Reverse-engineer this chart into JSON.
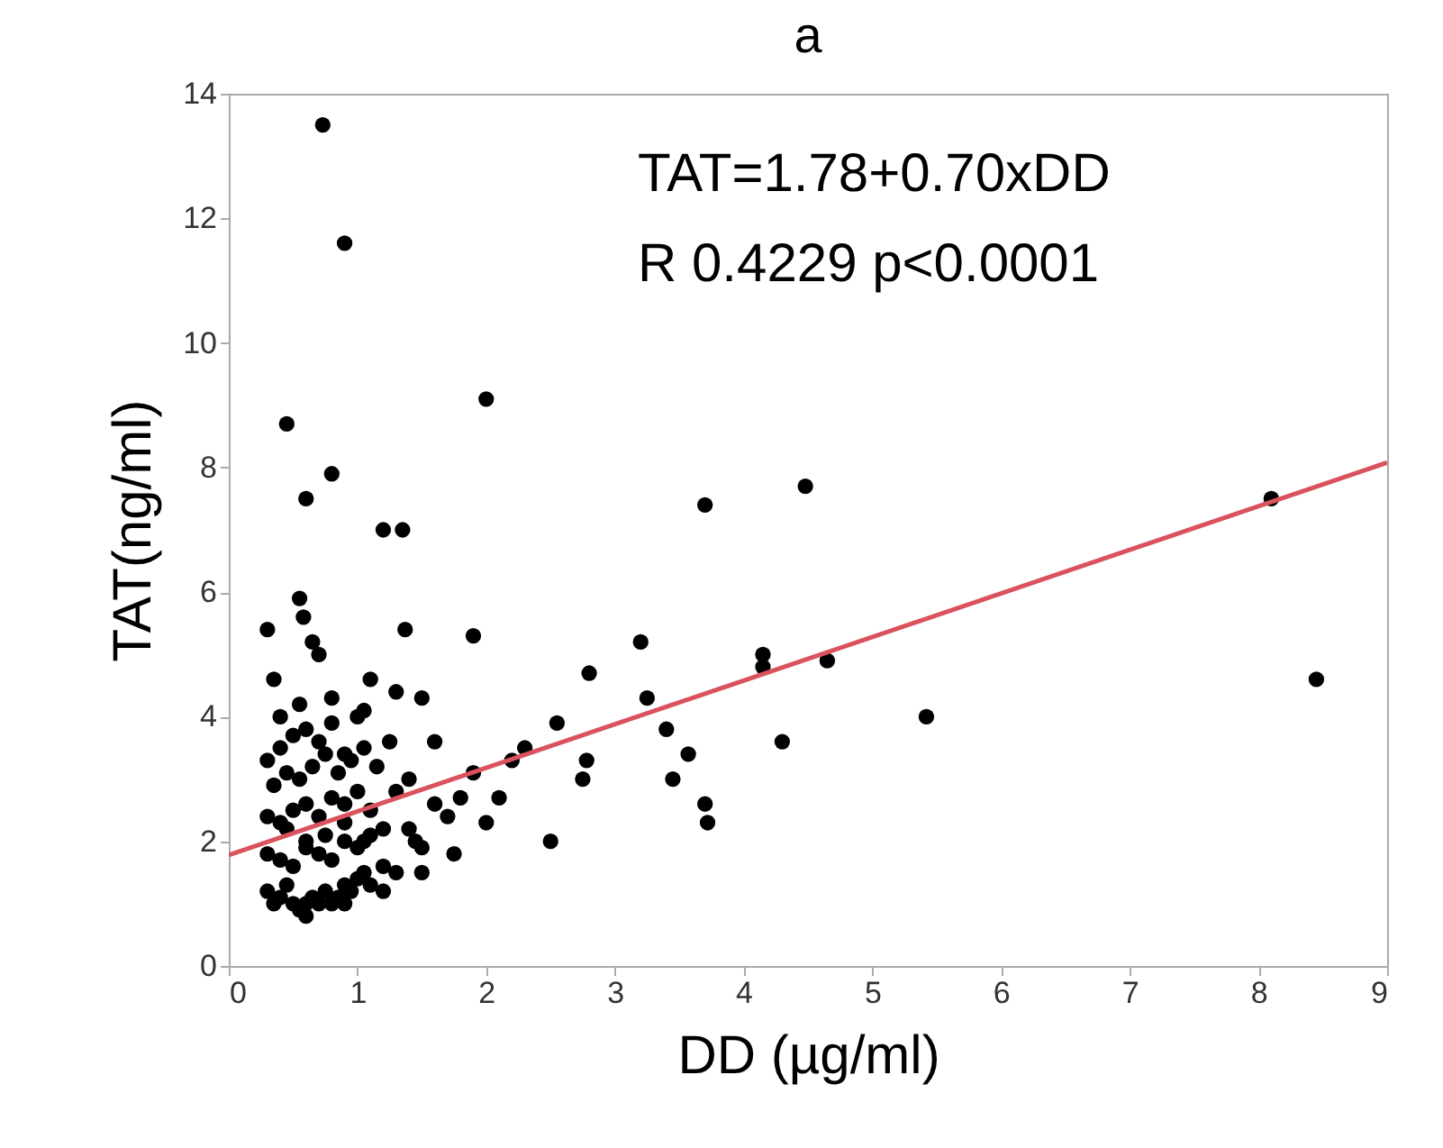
{
  "chart_data": {
    "type": "scatter",
    "title": "a",
    "xlabel": "DD (µg/ml)",
    "ylabel": "TAT(ng/ml)",
    "annotations": [
      "TAT=1.78+0.70xDD",
      "R 0.4229 p<0.0001"
    ],
    "xlim": [
      0,
      9
    ],
    "ylim": [
      0,
      14
    ],
    "xticks": [
      0,
      1,
      2,
      3,
      4,
      5,
      6,
      7,
      8,
      9
    ],
    "yticks": [
      0,
      2,
      4,
      6,
      8,
      10,
      12,
      14
    ],
    "grid": false,
    "series": [
      {
        "color": "#000000",
        "marker": "circle",
        "x": [
          0.73,
          0.9,
          0.45,
          2.0,
          0.8,
          0.6,
          1.2,
          1.35,
          3.7,
          4.48,
          8.1,
          8.45,
          5.42,
          4.65,
          4.15,
          4.15,
          4.3,
          3.7,
          3.72,
          3.45,
          3.4,
          3.57,
          3.2,
          3.25,
          2.8,
          2.78,
          2.75,
          2.5,
          2.55,
          1.9,
          1.05,
          1.1,
          1.37,
          0.55,
          0.58,
          0.65,
          0.7,
          0.3,
          0.35,
          0.4,
          0.55,
          0.8,
          1.3,
          1.5,
          0.6,
          0.9,
          1.2,
          1.5,
          1.75,
          2.0,
          2.2,
          2.3,
          1.8,
          1.6,
          1.9,
          2.1,
          0.3,
          0.35,
          0.4,
          0.45,
          0.5,
          0.55,
          0.6,
          0.65,
          0.7,
          0.75,
          0.8,
          0.85,
          0.9,
          0.95,
          1.0,
          1.05,
          1.1,
          0.3,
          0.4,
          0.5,
          0.6,
          0.7,
          0.8,
          0.9,
          1.0,
          1.1,
          1.2,
          0.3,
          0.4,
          0.5,
          0.6,
          0.7,
          0.8,
          0.9,
          1.0,
          1.1,
          1.3,
          1.4,
          0.35,
          0.45,
          0.55,
          0.65,
          0.75,
          0.85,
          0.95,
          1.05,
          1.15,
          1.25,
          0.3,
          0.4,
          0.5,
          0.6,
          0.7,
          0.8,
          0.9,
          1.0,
          0.45,
          0.6,
          0.75,
          0.9,
          1.05,
          1.4,
          1.6,
          1.7,
          1.2,
          1.3,
          1.5,
          1.45
        ],
        "values": [
          13.5,
          11.6,
          8.7,
          9.1,
          7.9,
          7.5,
          7.0,
          7.0,
          7.4,
          7.7,
          7.5,
          4.6,
          4.0,
          4.9,
          5.0,
          4.8,
          3.6,
          2.6,
          2.3,
          3.0,
          3.8,
          3.4,
          5.2,
          4.3,
          4.7,
          3.3,
          3.0,
          2.0,
          3.9,
          5.3,
          4.1,
          4.6,
          5.4,
          5.9,
          5.6,
          5.2,
          5.0,
          5.4,
          4.6,
          4.0,
          4.2,
          4.3,
          4.4,
          4.3,
          1.0,
          1.0,
          1.2,
          1.5,
          1.8,
          2.3,
          3.3,
          3.5,
          2.7,
          3.6,
          3.1,
          2.7,
          1.2,
          1.0,
          1.1,
          1.3,
          1.0,
          0.9,
          0.8,
          1.1,
          1.0,
          1.2,
          1.0,
          1.1,
          1.3,
          1.2,
          1.4,
          1.5,
          1.3,
          1.8,
          1.7,
          1.6,
          1.9,
          1.8,
          1.7,
          2.0,
          1.9,
          2.1,
          2.2,
          2.4,
          2.3,
          2.5,
          2.6,
          2.4,
          2.7,
          2.6,
          2.8,
          2.5,
          2.8,
          3.0,
          2.9,
          3.1,
          3.0,
          3.2,
          3.4,
          3.1,
          3.3,
          3.5,
          3.2,
          3.6,
          3.3,
          3.5,
          3.7,
          3.8,
          3.6,
          3.9,
          3.4,
          4.0,
          2.2,
          2.0,
          2.1,
          2.3,
          2.0,
          2.2,
          2.6,
          2.4,
          1.6,
          1.5,
          1.9,
          2.0
        ]
      },
      {
        "type": "line",
        "color": "#d9525e",
        "x": [
          0,
          9
        ],
        "values": [
          1.78,
          8.08
        ]
      }
    ]
  }
}
